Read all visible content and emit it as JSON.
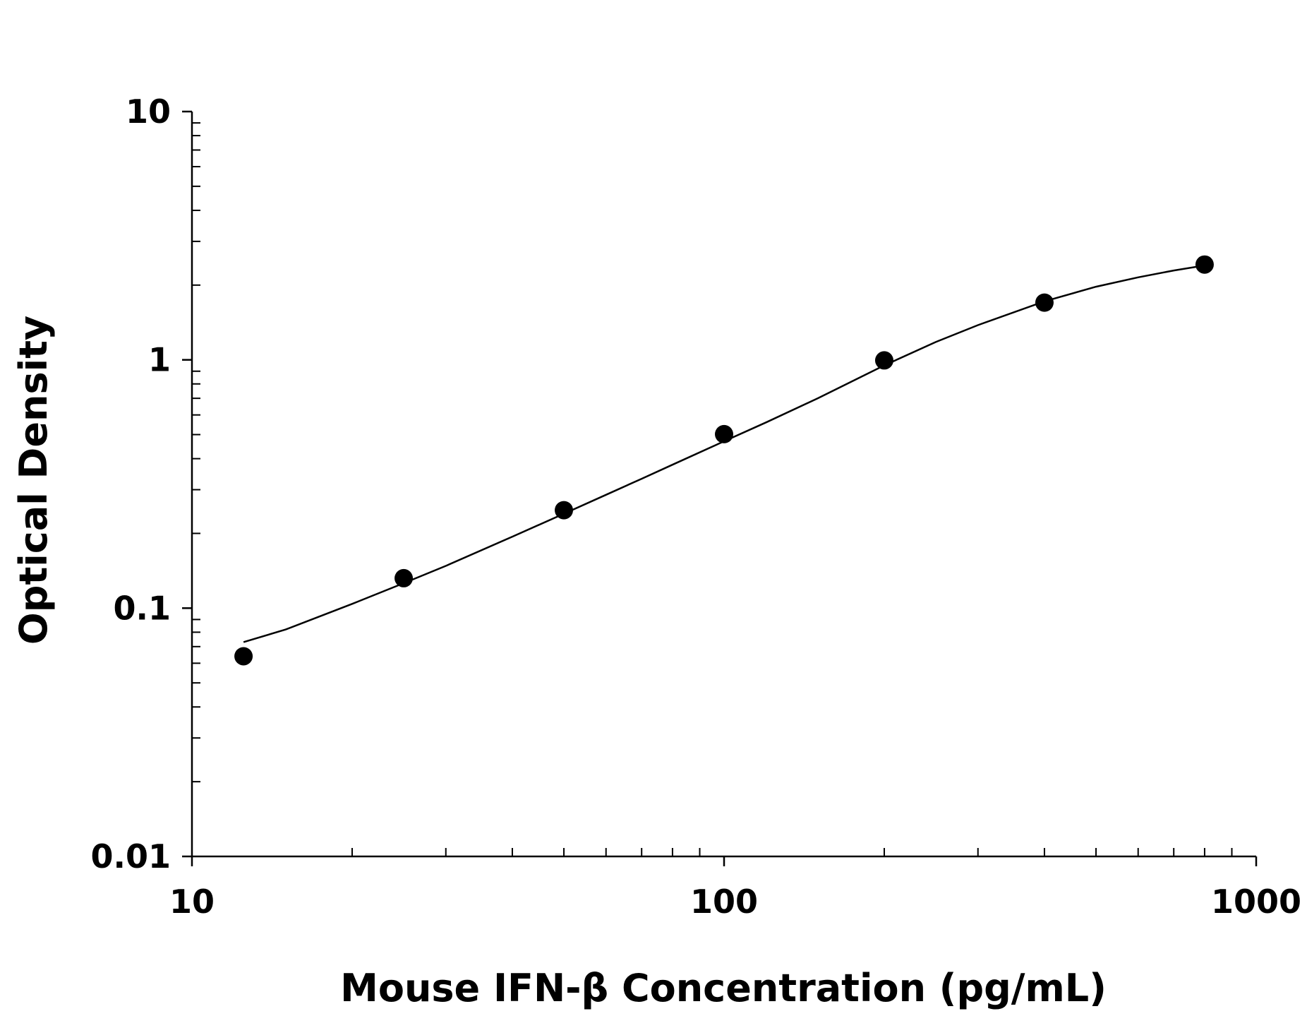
{
  "chart_data": {
    "type": "scatter",
    "title": "",
    "xlabel": "Mouse IFN-β Concentration (pg/mL)",
    "ylabel": "Optical Density",
    "x_scale": "log",
    "y_scale": "log",
    "xlim": [
      10,
      1000
    ],
    "ylim": [
      0.01,
      10
    ],
    "x_tick_labels": [
      "10",
      "100",
      "1000"
    ],
    "y_tick_labels": [
      "10",
      "1",
      "0.1",
      "0.01"
    ],
    "grid": false,
    "legend": "none",
    "series": [
      {
        "x": [
          12.5,
          25,
          50,
          100,
          200,
          400,
          800
        ],
        "y": [
          0.064,
          0.132,
          0.248,
          0.502,
          0.995,
          1.7,
          2.42
        ],
        "marker": "filled-circle",
        "color": "#000000"
      }
    ],
    "fit_curve": {
      "x": [
        12.5,
        15,
        20,
        25,
        30,
        40,
        50,
        60,
        70,
        80,
        100,
        120,
        150,
        200,
        250,
        300,
        400,
        500,
        600,
        700,
        800
      ],
      "y": [
        0.073,
        0.082,
        0.104,
        0.126,
        0.148,
        0.194,
        0.24,
        0.286,
        0.332,
        0.378,
        0.47,
        0.56,
        0.7,
        0.95,
        1.18,
        1.38,
        1.72,
        1.97,
        2.15,
        2.29,
        2.4
      ],
      "color": "#000000"
    }
  }
}
